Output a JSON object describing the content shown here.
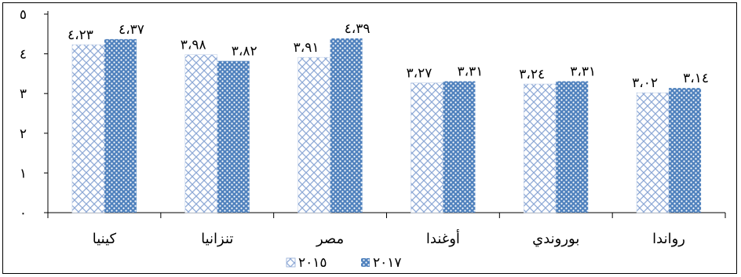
{
  "chart_data": {
    "type": "bar",
    "categories": [
      "كينيا",
      "تنزانيا",
      "مصر",
      "أوغندا",
      "بوروندي",
      "رواندا"
    ],
    "series": [
      {
        "name": "٢٠١٥",
        "values": [
          4.23,
          3.98,
          3.91,
          3.27,
          3.24,
          3.02
        ],
        "labels": [
          "٤،٢٣",
          "٣،٩٨",
          "٣،٩١",
          "٣،٢٧",
          "٣،٢٤",
          "٣،٠٢"
        ],
        "color": "#4F81BD",
        "pattern": "diamond-lattice"
      },
      {
        "name": "٢٠١٧",
        "values": [
          4.37,
          3.82,
          4.39,
          3.31,
          3.31,
          3.14
        ],
        "labels": [
          "٤،٣٧",
          "٣،٨٢",
          "٤،٣٩",
          "٣،٣١",
          "٣،٣١",
          "٣،١٤"
        ],
        "color": "#4F81BD",
        "pattern": "dotted-fill"
      }
    ],
    "yticks": [
      0,
      1,
      2,
      3,
      4,
      5
    ],
    "ytick_labels": [
      "٠",
      "١",
      "٢",
      "٣",
      "٤",
      "٥"
    ],
    "ylim": [
      0,
      5
    ],
    "grid": false,
    "legend_position": "bottom"
  }
}
